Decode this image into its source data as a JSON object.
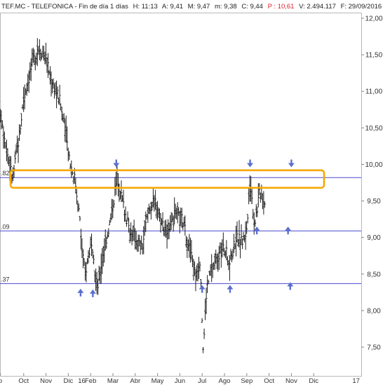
{
  "header": {
    "symbol": "TEF.MC - TELEFONICA - Fin de día 1 días",
    "high": "H: 11:13",
    "a": "A: 9,41",
    "m_upper": "M: 9,47",
    "m_lower": "m: 9,38",
    "c": "C: 9,44",
    "p": "P : 10,61",
    "v": "V: 2.494.117",
    "f": "F: 29/09/2016"
  },
  "colors": {
    "background": "#ffffff",
    "price": "#1c1c1c",
    "support_lines": "#4a4ad0",
    "arrows": "#5b6fd0",
    "resistance_zone": "#f5a800"
  },
  "chart_data": {
    "type": "ohlc",
    "ylim": [
      7.35,
      12.05
    ],
    "yticks": [
      "12,00",
      "11,50",
      "11,00",
      "10,50",
      "10,00",
      "9,50",
      "9,00",
      "8,50",
      "8,00",
      "7,50"
    ],
    "ytick_values": [
      12.0,
      11.5,
      11.0,
      10.5,
      10.0,
      9.5,
      9.0,
      8.5,
      8.0,
      7.5
    ],
    "x_months": [
      "p",
      "Oct",
      "Nov",
      "Dic",
      "Feb",
      "Mar",
      "Abr",
      "May",
      "Jun",
      "Jul",
      "Ago",
      "Sep",
      "Oct",
      "Nov",
      "Dic"
    ],
    "x_years": [
      "16",
      "17"
    ],
    "horizontal_levels": [
      {
        "label": ".82",
        "value": 9.82
      },
      {
        "label": ".09",
        "value": 9.09
      },
      {
        "label": ".37",
        "value": 8.37
      }
    ],
    "resistance_zone": {
      "from": 9.68,
      "to": 9.92
    },
    "arrows_down": [
      {
        "month_index": 5.15,
        "value": 9.99
      },
      {
        "month_index": 11.15,
        "value": 9.99
      },
      {
        "month_index": 13.0,
        "value": 9.99
      }
    ],
    "arrows_up": [
      {
        "month_index": 3.55,
        "value": 8.27
      },
      {
        "month_index": 4.1,
        "value": 8.26
      },
      {
        "month_index": 9.0,
        "value": 8.32
      },
      {
        "month_index": 10.25,
        "value": 8.32
      },
      {
        "month_index": 11.45,
        "value": 9.12
      },
      {
        "month_index": 12.85,
        "value": 9.12
      },
      {
        "month_index": 12.95,
        "value": 8.36
      }
    ],
    "price_path": [
      [
        -0.1,
        10.8
      ],
      [
        0.0,
        10.65
      ],
      [
        0.25,
        10.2
      ],
      [
        0.5,
        9.8
      ],
      [
        0.8,
        10.4
      ],
      [
        1.0,
        10.9
      ],
      [
        1.4,
        11.4
      ],
      [
        1.7,
        11.6
      ],
      [
        2.0,
        11.45
      ],
      [
        2.2,
        11.2
      ],
      [
        2.6,
        10.9
      ],
      [
        2.9,
        10.4
      ],
      [
        3.1,
        10.0
      ],
      [
        3.3,
        9.8
      ],
      [
        3.5,
        9.3
      ],
      [
        3.6,
        8.9
      ],
      [
        3.75,
        8.5
      ],
      [
        4.0,
        8.9
      ],
      [
        4.3,
        8.3
      ],
      [
        4.6,
        8.85
      ],
      [
        4.9,
        9.25
      ],
      [
        5.2,
        9.85
      ],
      [
        5.35,
        9.6
      ],
      [
        5.7,
        9.15
      ],
      [
        6.0,
        9.0
      ],
      [
        6.3,
        8.85
      ],
      [
        6.6,
        9.4
      ],
      [
        6.9,
        9.5
      ],
      [
        7.2,
        9.2
      ],
      [
        7.5,
        9.05
      ],
      [
        7.8,
        9.3
      ],
      [
        8.1,
        9.25
      ],
      [
        8.4,
        8.9
      ],
      [
        8.7,
        8.5
      ],
      [
        8.9,
        8.7
      ],
      [
        9.05,
        7.45
      ],
      [
        9.2,
        8.3
      ],
      [
        9.4,
        8.55
      ],
      [
        9.7,
        8.75
      ],
      [
        10.0,
        8.85
      ],
      [
        10.25,
        8.65
      ],
      [
        10.5,
        9.0
      ],
      [
        10.8,
        8.95
      ],
      [
        11.0,
        9.1
      ],
      [
        11.15,
        9.75
      ],
      [
        11.35,
        9.2
      ],
      [
        11.6,
        9.65
      ],
      [
        11.85,
        9.44
      ]
    ]
  }
}
